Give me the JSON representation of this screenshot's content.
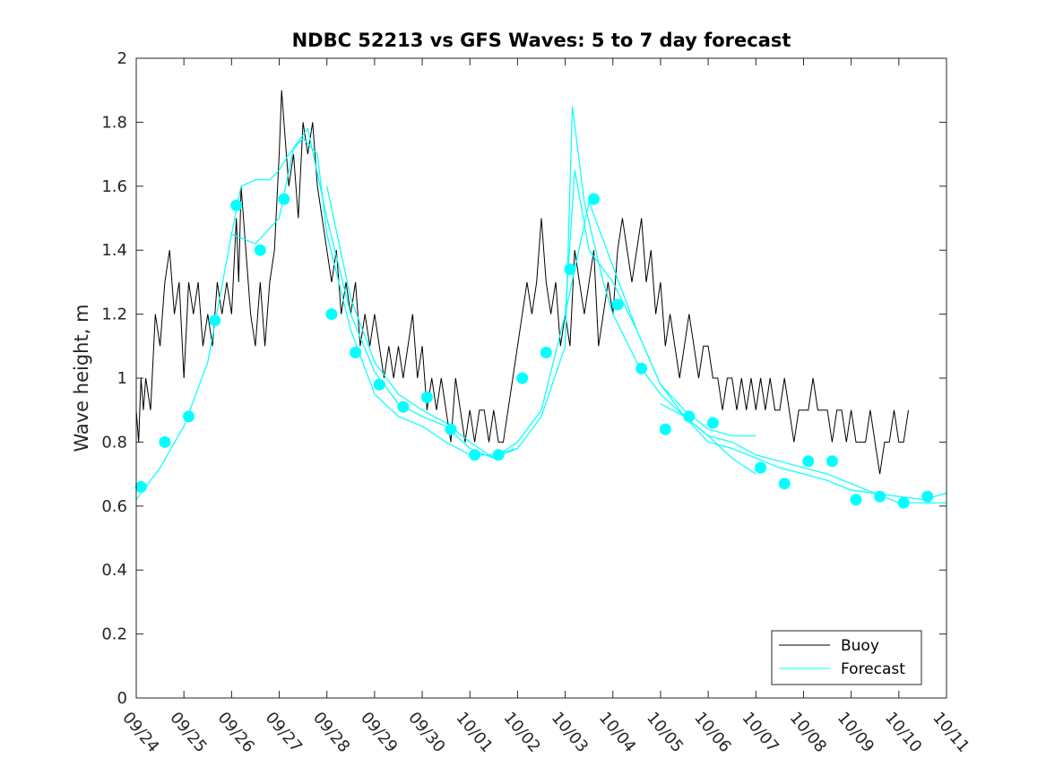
{
  "chart_data": {
    "type": "line",
    "title": "NDBC 52213 vs GFS Waves: 5 to 7 day forecast",
    "xlabel": "",
    "ylabel": "Wave height, m",
    "xlim": [
      0,
      17
    ],
    "ylim": [
      0,
      2
    ],
    "yticks": [
      0,
      0.2,
      0.4,
      0.6,
      0.8,
      1,
      1.2,
      1.4,
      1.6,
      1.8,
      2
    ],
    "ytick_labels": [
      "0",
      "0.2",
      "0.4",
      "0.6",
      "0.8",
      "1",
      "1.2",
      "1.4",
      "1.6",
      "1.8",
      "2"
    ],
    "xticks": [
      0,
      1,
      2,
      3,
      4,
      5,
      6,
      7,
      8,
      9,
      10,
      11,
      12,
      13,
      14,
      15,
      16,
      17
    ],
    "xtick_labels": [
      "09/24",
      "09/25",
      "09/26",
      "09/27",
      "09/28",
      "09/29",
      "09/30",
      "10/01",
      "10/02",
      "10/03",
      "10/04",
      "10/05",
      "10/06",
      "10/07",
      "10/08",
      "10/09",
      "10/10",
      "10/11"
    ],
    "legend": {
      "placement": "bottom-right",
      "entries": [
        "Buoy",
        "Forecast"
      ]
    },
    "colors": {
      "buoy": "#000000",
      "forecast": "#00ffff"
    },
    "series": [
      {
        "name": "Buoy",
        "x": [
          0,
          0.05,
          0.1,
          0.15,
          0.2,
          0.3,
          0.4,
          0.5,
          0.6,
          0.7,
          0.8,
          0.9,
          1.0,
          1.1,
          1.2,
          1.3,
          1.4,
          1.5,
          1.6,
          1.7,
          1.8,
          1.9,
          2.0,
          2.1,
          2.15,
          2.2,
          2.3,
          2.4,
          2.5,
          2.6,
          2.7,
          2.8,
          2.9,
          3.0,
          3.05,
          3.1,
          3.2,
          3.3,
          3.4,
          3.5,
          3.6,
          3.7,
          3.8,
          3.9,
          4.0,
          4.1,
          4.2,
          4.3,
          4.4,
          4.5,
          4.6,
          4.7,
          4.8,
          4.9,
          5.0,
          5.1,
          5.2,
          5.3,
          5.4,
          5.5,
          5.6,
          5.7,
          5.8,
          5.9,
          6.0,
          6.1,
          6.2,
          6.3,
          6.4,
          6.5,
          6.6,
          6.7,
          6.8,
          6.9,
          7.0,
          7.1,
          7.2,
          7.3,
          7.4,
          7.5,
          7.6,
          7.7,
          7.8,
          7.9,
          8.0,
          8.1,
          8.2,
          8.3,
          8.4,
          8.5,
          8.6,
          8.7,
          8.8,
          8.9,
          9.0,
          9.1,
          9.2,
          9.3,
          9.4,
          9.5,
          9.6,
          9.7,
          9.8,
          9.9,
          10.0,
          10.1,
          10.2,
          10.3,
          10.4,
          10.5,
          10.6,
          10.7,
          10.8,
          10.9,
          11.0,
          11.1,
          11.2,
          11.3,
          11.4,
          11.5,
          11.6,
          11.7,
          11.8,
          11.9,
          12.0,
          12.1,
          12.2,
          12.3,
          12.4,
          12.5,
          12.6,
          12.7,
          12.8,
          12.9,
          13.0,
          13.1,
          13.2,
          13.3,
          13.4,
          13.5,
          13.6,
          13.7,
          13.8,
          13.9,
          14.0,
          14.1,
          14.2,
          14.3,
          14.4,
          14.5,
          14.6,
          14.7,
          14.8,
          14.9,
          15.0,
          15.1,
          15.2,
          15.3,
          15.4,
          15.5,
          15.6,
          15.7,
          15.8,
          15.9,
          16.0,
          16.1,
          16.2
        ],
        "values": [
          0.9,
          0.8,
          1.0,
          0.9,
          1.0,
          0.9,
          1.2,
          1.1,
          1.3,
          1.4,
          1.2,
          1.3,
          1.0,
          1.3,
          1.2,
          1.3,
          1.1,
          1.2,
          1.1,
          1.3,
          1.2,
          1.3,
          1.2,
          1.5,
          1.3,
          1.6,
          1.4,
          1.2,
          1.1,
          1.3,
          1.1,
          1.3,
          1.4,
          1.7,
          1.9,
          1.8,
          1.6,
          1.7,
          1.5,
          1.8,
          1.7,
          1.8,
          1.6,
          1.5,
          1.4,
          1.3,
          1.4,
          1.2,
          1.3,
          1.2,
          1.3,
          1.1,
          1.2,
          1.1,
          1.2,
          1.1,
          1.0,
          1.1,
          1.0,
          1.1,
          1.0,
          1.1,
          1.2,
          1.0,
          1.1,
          0.9,
          1.0,
          0.9,
          1.0,
          0.9,
          0.8,
          1.0,
          0.9,
          0.8,
          0.9,
          0.8,
          0.9,
          0.9,
          0.8,
          0.9,
          0.8,
          0.8,
          0.9,
          1.0,
          1.1,
          1.2,
          1.3,
          1.2,
          1.3,
          1.5,
          1.3,
          1.2,
          1.3,
          1.1,
          1.2,
          1.1,
          1.4,
          1.3,
          1.2,
          1.3,
          1.4,
          1.1,
          1.2,
          1.3,
          1.2,
          1.4,
          1.5,
          1.4,
          1.3,
          1.4,
          1.5,
          1.3,
          1.4,
          1.2,
          1.3,
          1.1,
          1.2,
          1.1,
          1.0,
          1.1,
          1.2,
          1.1,
          1.0,
          1.1,
          1.1,
          1.0,
          1.0,
          0.9,
          1.0,
          1.0,
          0.9,
          1.0,
          0.9,
          1.0,
          0.9,
          1.0,
          0.9,
          1.0,
          0.9,
          0.9,
          1.0,
          0.9,
          0.8,
          0.9,
          0.9,
          0.9,
          1.0,
          0.9,
          0.9,
          0.9,
          0.8,
          0.9,
          0.9,
          0.8,
          0.9,
          0.8,
          0.8,
          0.8,
          0.9,
          0.8,
          0.7,
          0.8,
          0.8,
          0.9,
          0.8,
          0.8,
          0.9
        ]
      },
      {
        "name": "Forecast",
        "style": "lines",
        "runs": [
          {
            "x": [
              0,
              0.5,
              1.0,
              1.5,
              2.0,
              2.2,
              2.5,
              2.8,
              3.0,
              3.2,
              3.5,
              3.8,
              4.0,
              4.5,
              5.0,
              5.5,
              6.0,
              6.5,
              7.0,
              7.5,
              8.0
            ],
            "values": [
              0.62,
              0.72,
              0.85,
              1.05,
              1.45,
              1.6,
              1.62,
              1.62,
              1.65,
              1.7,
              1.75,
              1.7,
              1.45,
              1.15,
              0.95,
              0.88,
              0.85,
              0.8,
              0.76,
              0.76,
              0.78
            ]
          },
          {
            "x": [
              2.0,
              2.5,
              3.0,
              3.3,
              3.6,
              4.0,
              4.5,
              5.0,
              5.5,
              6.0,
              6.5,
              7.0,
              7.5,
              8.0,
              8.5,
              9.0,
              9.2,
              9.5,
              10.0,
              10.5,
              11.0,
              11.5,
              12.0,
              12.5,
              13.0
            ],
            "values": [
              1.45,
              1.42,
              1.5,
              1.72,
              1.78,
              1.5,
              1.2,
              1.02,
              0.92,
              0.88,
              0.85,
              0.78,
              0.75,
              0.8,
              0.9,
              1.2,
              1.65,
              1.4,
              1.3,
              1.15,
              0.98,
              0.9,
              0.84,
              0.82,
              0.82
            ]
          },
          {
            "x": [
              4.0,
              4.5,
              5.0,
              5.5,
              6.0,
              6.5,
              7.0,
              7.5,
              8.0,
              8.5,
              9.0,
              9.15,
              9.4,
              9.8,
              10.0,
              10.5,
              11.0,
              11.5,
              12.0,
              12.5,
              13.0
            ],
            "values": [
              1.6,
              1.25,
              1.05,
              0.95,
              0.9,
              0.86,
              0.8,
              0.75,
              0.78,
              0.88,
              1.1,
              1.85,
              1.55,
              1.3,
              1.2,
              1.05,
              0.95,
              0.88,
              0.82,
              0.75,
              0.7
            ]
          },
          {
            "x": [
              9.0,
              9.5,
              10.0,
              10.5,
              11.0,
              11.5,
              12.0,
              12.5,
              13.0,
              13.5,
              14.0,
              14.5,
              15.0,
              15.5,
              16.0,
              16.5,
              17.0
            ],
            "values": [
              1.2,
              1.55,
              1.35,
              1.15,
              0.98,
              0.88,
              0.8,
              0.78,
              0.75,
              0.72,
              0.7,
              0.68,
              0.65,
              0.64,
              0.63,
              0.62,
              0.64
            ]
          },
          {
            "x": [
              11.0,
              11.5,
              12.0,
              12.5,
              13.0,
              13.5,
              14.0,
              14.5,
              15.0,
              15.5,
              16.0,
              16.5,
              17.0
            ],
            "values": [
              0.92,
              0.88,
              0.82,
              0.8,
              0.76,
              0.74,
              0.72,
              0.7,
              0.67,
              0.64,
              0.61,
              0.61,
              0.61
            ]
          }
        ]
      },
      {
        "name": "Forecast markers",
        "style": "markers",
        "x": [
          0.1,
          0.6,
          1.1,
          1.65,
          2.1,
          2.6,
          3.1,
          4.1,
          4.6,
          5.1,
          5.6,
          6.1,
          6.6,
          7.1,
          7.6,
          8.1,
          8.6,
          9.1,
          9.6,
          10.1,
          10.6,
          11.1,
          11.6,
          12.1,
          13.1,
          13.6,
          14.1,
          14.6,
          15.1,
          15.6,
          16.1,
          16.6
        ],
        "values": [
          0.66,
          0.8,
          0.88,
          1.18,
          1.54,
          1.4,
          1.56,
          1.2,
          1.08,
          0.98,
          0.91,
          0.94,
          0.84,
          0.76,
          0.76,
          1.0,
          1.08,
          1.34,
          1.56,
          1.23,
          1.03,
          0.84,
          0.88,
          0.86,
          0.72,
          0.67,
          0.74,
          0.74,
          0.62,
          0.63,
          0.61,
          0.63
        ]
      }
    ]
  }
}
